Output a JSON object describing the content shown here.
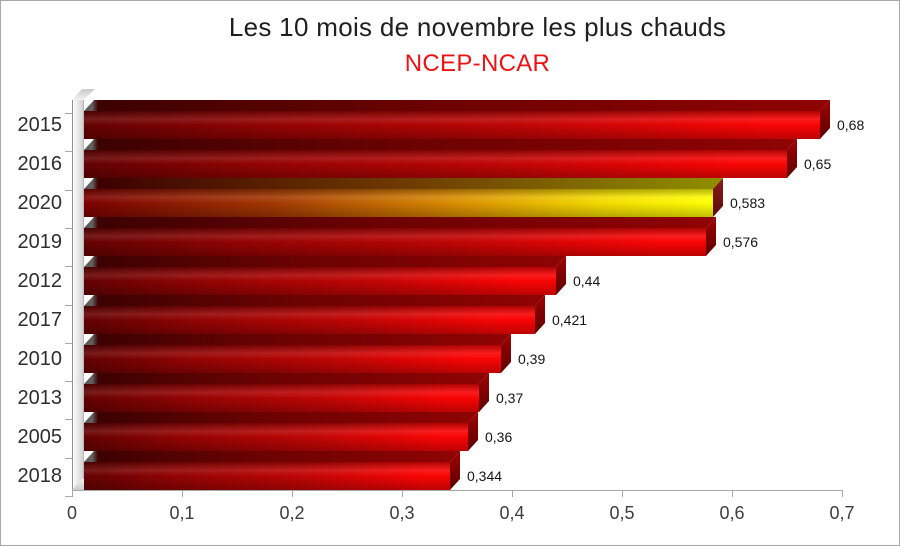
{
  "chart_data": {
    "type": "bar",
    "orientation": "horizontal",
    "title": "Les 10 mois de novembre les plus chauds",
    "subtitle": "NCEP-NCAR",
    "categories": [
      "2015",
      "2016",
      "2020",
      "2019",
      "2012",
      "2017",
      "2010",
      "2013",
      "2005",
      "2018"
    ],
    "values": [
      0.68,
      0.65,
      0.583,
      0.576,
      0.44,
      0.421,
      0.39,
      0.37,
      0.36,
      0.344
    ],
    "value_labels": [
      "0,68",
      "0,65",
      "0,583",
      "0,576",
      "0,44",
      "0,421",
      "0,39",
      "0,37",
      "0,36",
      "0,344"
    ],
    "highlighted_category": "2020",
    "xlim": [
      0,
      0.7
    ],
    "x_tick_values": [
      0,
      0.1,
      0.2,
      0.3,
      0.4,
      0.5,
      0.6,
      0.7
    ],
    "x_tick_labels": [
      "0",
      "0,1",
      "0,2",
      "0,3",
      "0,4",
      "0,5",
      "0,6",
      "0,7"
    ],
    "grid": false,
    "legend": false,
    "colors": {
      "bar_dark": "#650202",
      "bar_bright": "#f90404",
      "highlight_left": "#7c0101",
      "highlight_mid": "#d98a02",
      "highlight_right": "#ffff05",
      "subtitle": "#ee1212"
    }
  }
}
